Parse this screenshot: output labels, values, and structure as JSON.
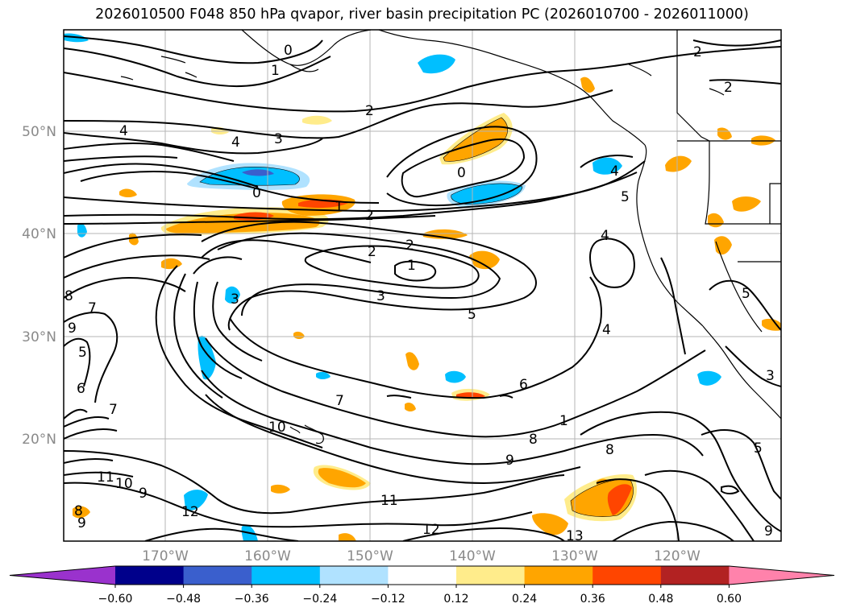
{
  "title": "2026010500 F048 850 hPa qvapor, river basin precipitation PC (2026010700 - 2026011000)",
  "latitude_labels": [
    "50°N",
    "40°N",
    "30°N",
    "20°N"
  ],
  "longitude_labels": [
    "170°W",
    "160°W",
    "150°W",
    "140°W",
    "130°W",
    "120°W"
  ],
  "contour_labels": [
    "0",
    "1",
    "2",
    "2",
    "2",
    "4",
    "3",
    "4",
    "0",
    "1",
    "2",
    "2",
    "0",
    "4",
    "5",
    "4",
    "2",
    "1",
    "3",
    "5",
    "3",
    "8",
    "7",
    "9",
    "5",
    "6",
    "7",
    "1",
    "4",
    "6",
    "7",
    "8",
    "9",
    "10",
    "11",
    "12",
    "13",
    "8",
    "11",
    "10",
    "9",
    "12",
    "9",
    "5",
    "5",
    "9",
    "8",
    "3"
  ],
  "colorbar": {
    "colors": [
      "#9a32cd",
      "#00008b",
      "#3a5fcd",
      "#00bfff",
      "#b0e2ff",
      "#ffffff",
      "#ffec8b",
      "#ffa500",
      "#ff4500",
      "#b22222",
      "#ff82ab"
    ],
    "tick_labels": [
      "−0.60",
      "−0.48",
      "−0.36",
      "−0.24",
      "−0.12",
      "0.12",
      "0.24",
      "0.36",
      "0.48",
      "0.60"
    ]
  }
}
